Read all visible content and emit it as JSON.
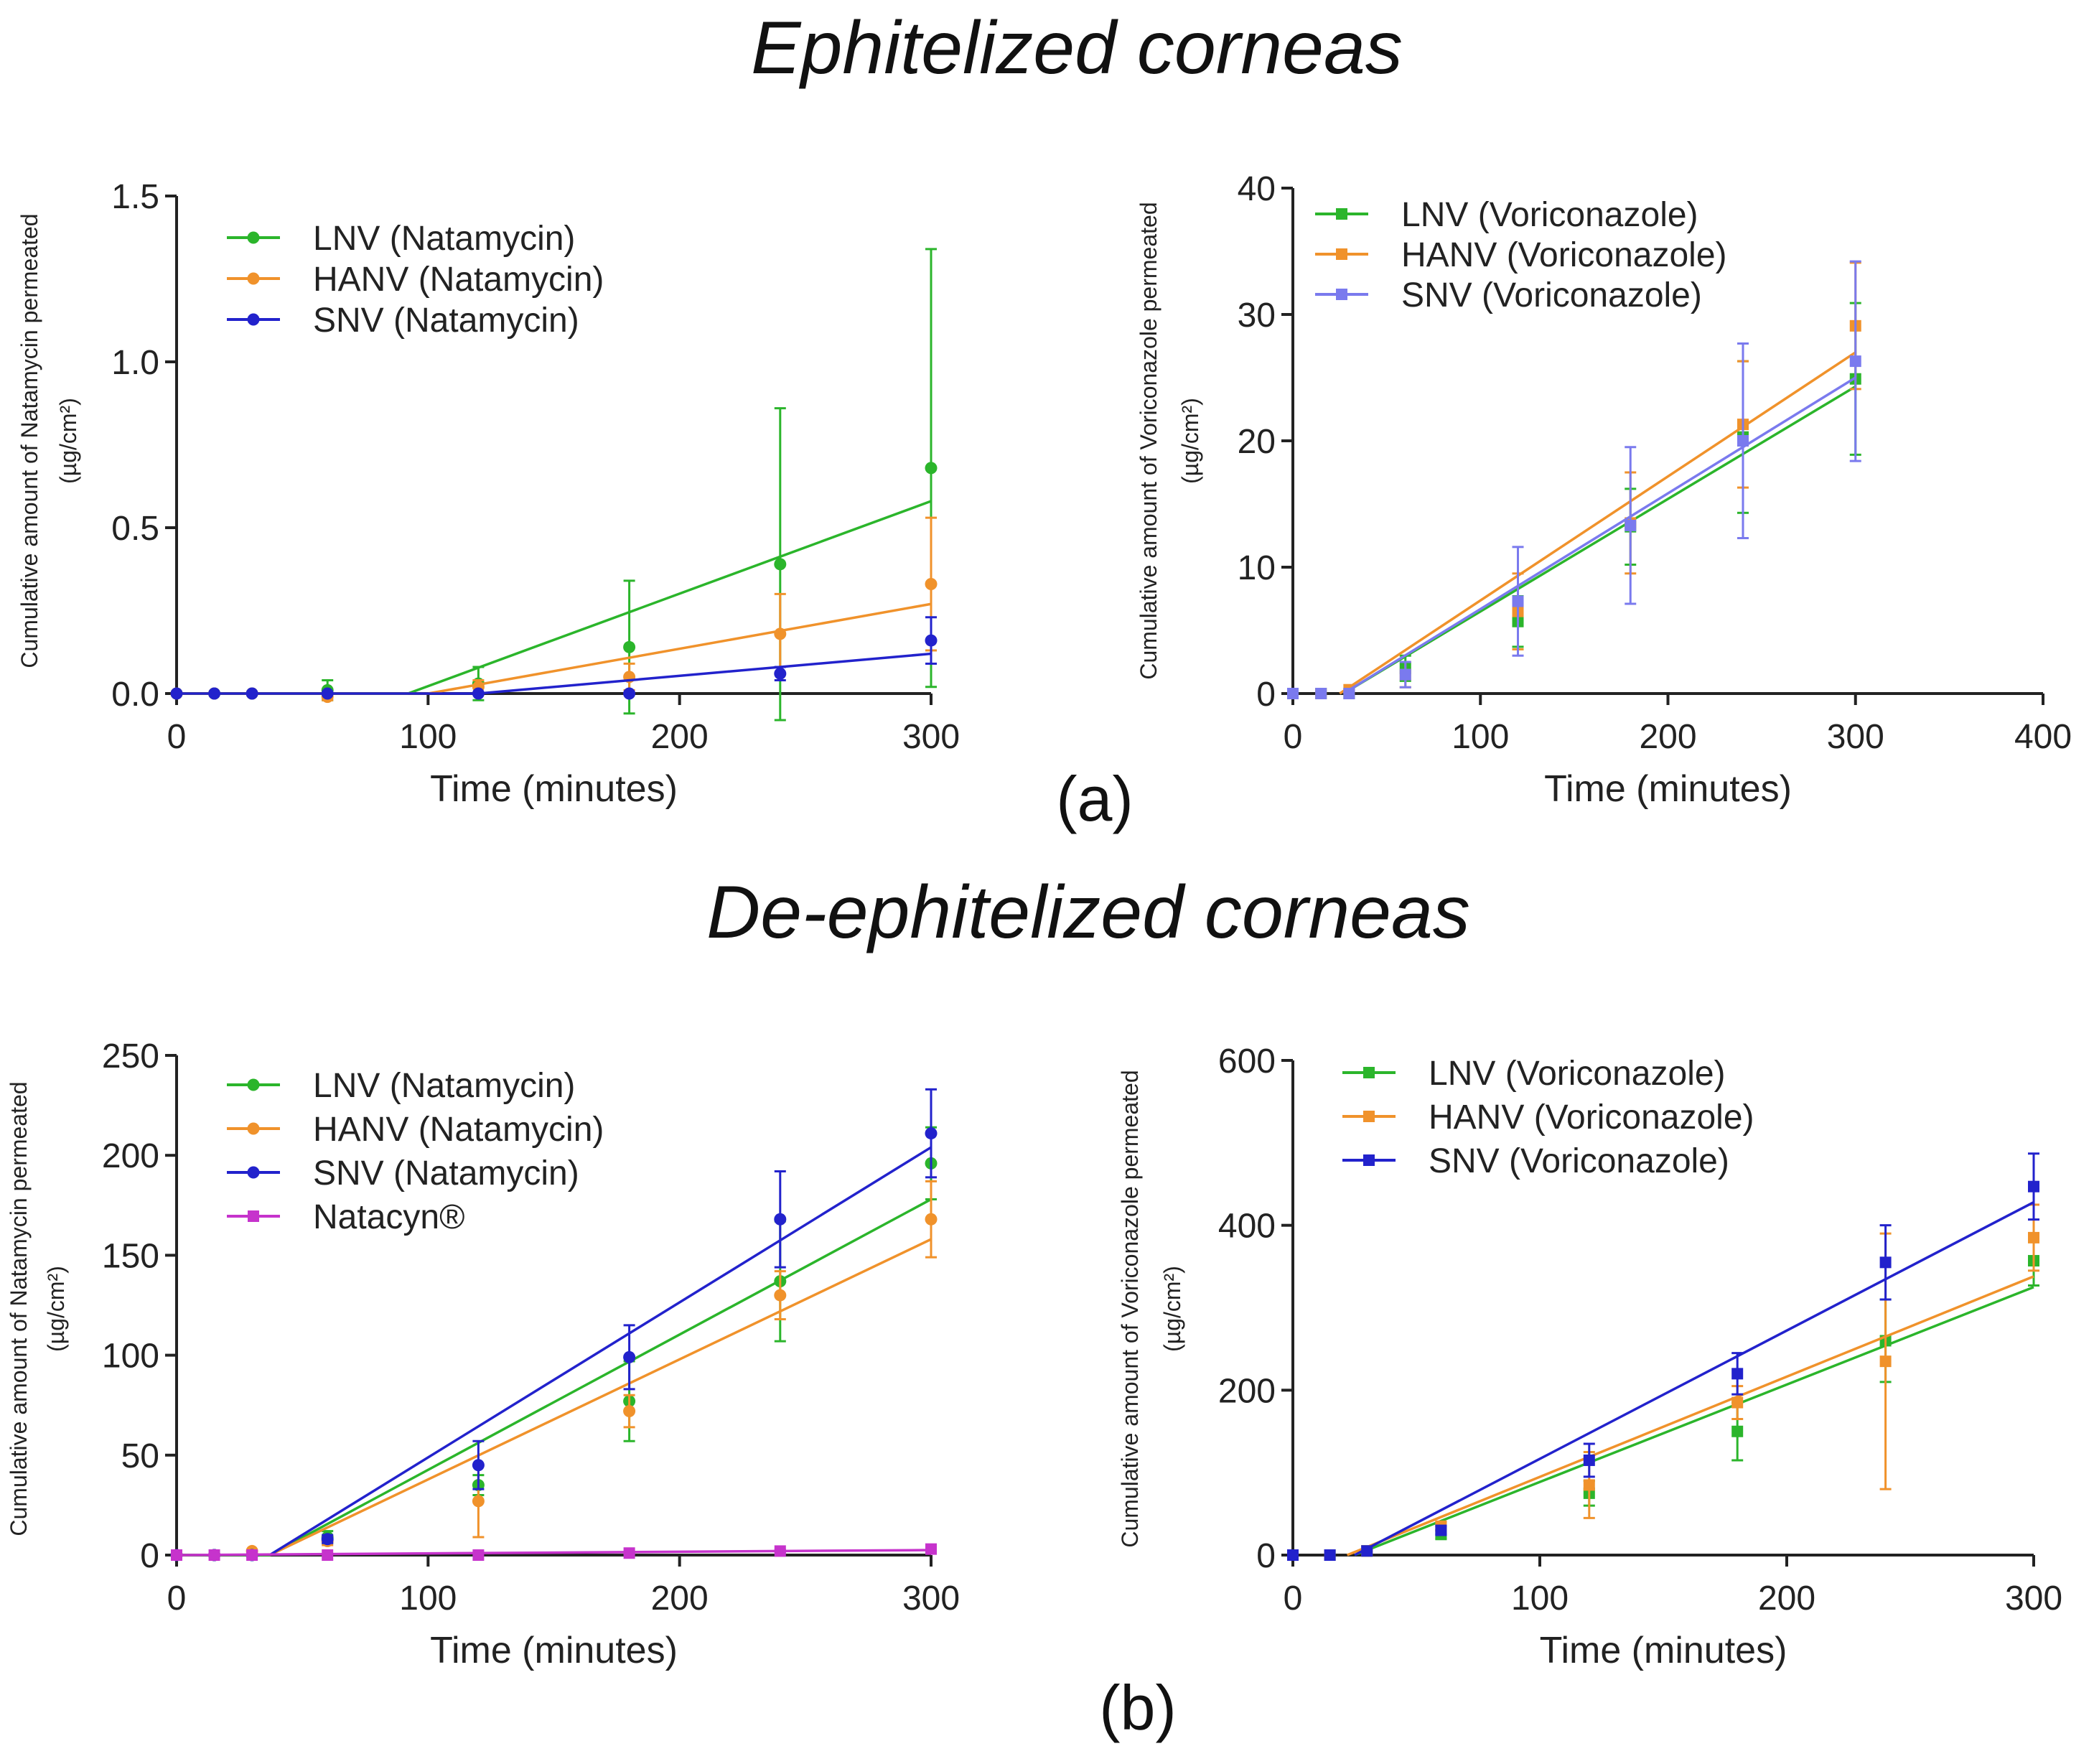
{
  "titles": {
    "top": "Ephitelized corneas",
    "bottom": "De-ephitelized corneas"
  },
  "panel_labels": {
    "a": "(a)",
    "b": "(b)"
  },
  "colors": {
    "LNV": "#2bb52b",
    "HANV": "#f0922b",
    "SNV": "#2222cc",
    "SNV_light": "#7a7aee",
    "Natacyn": "#c633cc",
    "axis": "#222222"
  },
  "chart_data": [
    {
      "id": "a-natamycin",
      "type": "line",
      "title": "",
      "xlabel": "Time (minutes)",
      "ylabel": [
        "Cumulative amount of Natamycin permeated",
        "(µg/cm²)"
      ],
      "xlim": [
        0,
        300
      ],
      "ylim": [
        0,
        1.5
      ],
      "xticks": [
        "0",
        "100",
        "200",
        "300"
      ],
      "xtick_values": [
        0,
        100,
        200,
        300
      ],
      "yticks": [
        "0.0",
        "0.5",
        "1.0",
        "1.5"
      ],
      "ytick_values": [
        0,
        0.5,
        1.0,
        1.5
      ],
      "marker": "circle",
      "legend": "top-left",
      "grid": false,
      "x": [
        0,
        15,
        30,
        60,
        120,
        180,
        240,
        300
      ],
      "series": [
        {
          "name": "LNV (Natamycin)",
          "color_key": "LNV",
          "values": [
            0,
            0,
            0,
            0.01,
            0.03,
            0.14,
            0.39,
            0.68
          ],
          "errors": [
            0,
            0,
            0,
            0.03,
            0.05,
            0.2,
            0.47,
            0.66
          ],
          "fit": [
            [
              0,
              0
            ],
            [
              92,
              0
            ],
            [
              300,
              0.58
            ]
          ]
        },
        {
          "name": "HANV (Natamycin)",
          "color_key": "HANV",
          "values": [
            0,
            0,
            0,
            -0.01,
            0.02,
            0.05,
            0.18,
            0.33
          ],
          "errors": [
            0,
            0,
            0,
            0.01,
            0.02,
            0.04,
            0.12,
            0.2
          ],
          "fit": [
            [
              0,
              0
            ],
            [
              100,
              0
            ],
            [
              300,
              0.27
            ]
          ]
        },
        {
          "name": "SNV (Natamycin)",
          "color_key": "SNV",
          "values": [
            0,
            0,
            0,
            0,
            0,
            0,
            0.06,
            0.16
          ],
          "errors": [
            0,
            0,
            0,
            0,
            0,
            0,
            0.02,
            0.07
          ],
          "fit": [
            [
              0,
              0
            ],
            [
              120,
              0
            ],
            [
              300,
              0.12
            ]
          ]
        }
      ]
    },
    {
      "id": "a-voriconazole",
      "type": "line",
      "title": "",
      "xlabel": "Time (minutes)",
      "ylabel": [
        "Cumulative amount of Voriconazole permeated",
        "(µg/cm²)"
      ],
      "xlim": [
        0,
        400
      ],
      "ylim": [
        0,
        40
      ],
      "xticks": [
        "0",
        "100",
        "200",
        "300",
        "400"
      ],
      "xtick_values": [
        0,
        100,
        200,
        300,
        400
      ],
      "yticks": [
        "0",
        "10",
        "20",
        "30",
        "40"
      ],
      "ytick_values": [
        0,
        10,
        20,
        30,
        40
      ],
      "marker": "square",
      "legend": "top-left",
      "grid": false,
      "x": [
        0,
        15,
        30,
        60,
        120,
        180,
        240,
        300
      ],
      "series": [
        {
          "name": "LNV (Voriconazole)",
          "color_key": "LNV",
          "values": [
            0,
            0,
            0,
            2,
            5.7,
            13.2,
            20.3,
            24.9
          ],
          "errors": [
            0,
            0,
            0,
            1,
            2,
            3,
            6,
            6
          ],
          "fit": [
            [
              27,
              0
            ],
            [
              300,
              24.3
            ]
          ]
        },
        {
          "name": "HANV (Voriconazole)",
          "color_key": "HANV",
          "values": [
            0,
            0,
            0.3,
            1.5,
            6.5,
            13.5,
            21.3,
            29.1
          ],
          "errors": [
            0,
            0,
            0,
            1,
            3,
            4,
            5,
            5
          ],
          "fit": [
            [
              25,
              0
            ],
            [
              300,
              27
            ]
          ]
        },
        {
          "name": "SNV (Voriconazole)",
          "color_key": "SNV_light",
          "values": [
            0,
            0,
            0,
            1.5,
            7.3,
            13.3,
            20,
            26.3
          ],
          "errors": [
            0,
            0,
            0,
            1,
            4.3,
            6.2,
            7.7,
            7.9
          ],
          "fit": [
            [
              27,
              0
            ],
            [
              300,
              25
            ]
          ]
        }
      ]
    },
    {
      "id": "b-natamycin",
      "type": "line",
      "title": "",
      "xlabel": "Time (minutes)",
      "ylabel": [
        "Cumulative amount of Natamycin permeated",
        "(µg/cm²)"
      ],
      "xlim": [
        0,
        300
      ],
      "ylim": [
        0,
        250
      ],
      "xticks": [
        "0",
        "100",
        "200",
        "300"
      ],
      "xtick_values": [
        0,
        100,
        200,
        300
      ],
      "yticks": [
        "0",
        "50",
        "100",
        "150",
        "200",
        "250"
      ],
      "ytick_values": [
        0,
        50,
        100,
        150,
        200,
        250
      ],
      "marker": "circle",
      "legend": "top-left",
      "grid": false,
      "x": [
        0,
        15,
        30,
        60,
        120,
        180,
        240,
        300
      ],
      "series": [
        {
          "name": "LNV (Natamycin)",
          "color_key": "LNV",
          "values": [
            0,
            0,
            0,
            9,
            35,
            77,
            137,
            196
          ],
          "errors": [
            0,
            0,
            0,
            3,
            5,
            20,
            30,
            18
          ],
          "fit": [
            [
              0,
              0
            ],
            [
              37,
              0
            ],
            [
              300,
              178
            ]
          ]
        },
        {
          "name": "HANV (Natamycin)",
          "color_key": "HANV",
          "values": [
            0,
            0,
            2,
            7,
            27,
            72,
            130,
            168
          ],
          "errors": [
            0,
            0,
            0,
            2,
            18,
            8,
            12,
            19
          ],
          "fit": [
            [
              37,
              0
            ],
            [
              300,
              158
            ]
          ]
        },
        {
          "name": "SNV (Natamycin)",
          "color_key": "SNV",
          "values": [
            0,
            0,
            0,
            8,
            45,
            99,
            168,
            211
          ],
          "errors": [
            0,
            0,
            0,
            2,
            12,
            16,
            24,
            22
          ],
          "fit": [
            [
              37,
              0
            ],
            [
              300,
              204
            ]
          ]
        },
        {
          "name": "Natacyn®",
          "color_key": "Natacyn",
          "marker": "square",
          "values": [
            0,
            0,
            0,
            0,
            0,
            1,
            2,
            3
          ],
          "errors": [
            0,
            0,
            0,
            0,
            0,
            0.5,
            0.5,
            1
          ],
          "fit": [
            [
              0,
              0
            ],
            [
              300,
              2.5
            ]
          ]
        }
      ]
    },
    {
      "id": "b-voriconazole",
      "type": "line",
      "title": "",
      "xlabel": "Time (minutes)",
      "ylabel": [
        "Cumulative amount of Voriconazole permeated",
        "(µg/cm²)"
      ],
      "xlim": [
        0,
        300
      ],
      "ylim": [
        0,
        600
      ],
      "xticks": [
        "0",
        "100",
        "200",
        "300"
      ],
      "xtick_values": [
        0,
        100,
        200,
        300
      ],
      "yticks": [
        "0",
        "200",
        "400",
        "600"
      ],
      "ytick_values": [
        0,
        200,
        400,
        600
      ],
      "marker": "square",
      "legend": "top-left",
      "grid": false,
      "x": [
        0,
        15,
        30,
        60,
        120,
        180,
        240,
        300
      ],
      "series": [
        {
          "name": "LNV (Voriconazole)",
          "color_key": "LNV",
          "values": [
            0,
            0,
            5,
            25,
            75,
            150,
            260,
            357
          ],
          "errors": [
            0,
            0,
            0,
            5,
            15,
            35,
            50,
            30
          ],
          "fit": [
            [
              25,
              0
            ],
            [
              300,
              325
            ]
          ]
        },
        {
          "name": "HANV (Voriconazole)",
          "color_key": "HANV",
          "values": [
            0,
            0,
            5,
            35,
            85,
            185,
            235,
            385
          ],
          "errors": [
            0,
            0,
            0,
            5,
            40,
            20,
            155,
            40
          ],
          "fit": [
            [
              22,
              0
            ],
            [
              300,
              338
            ]
          ]
        },
        {
          "name": "SNV (Voriconazole)",
          "color_key": "SNV",
          "values": [
            0,
            0,
            5,
            30,
            115,
            220,
            355,
            447
          ],
          "errors": [
            0,
            0,
            0,
            5,
            20,
            25,
            45,
            40
          ],
          "fit": [
            [
              25,
              0
            ],
            [
              300,
              428
            ]
          ]
        }
      ]
    }
  ]
}
